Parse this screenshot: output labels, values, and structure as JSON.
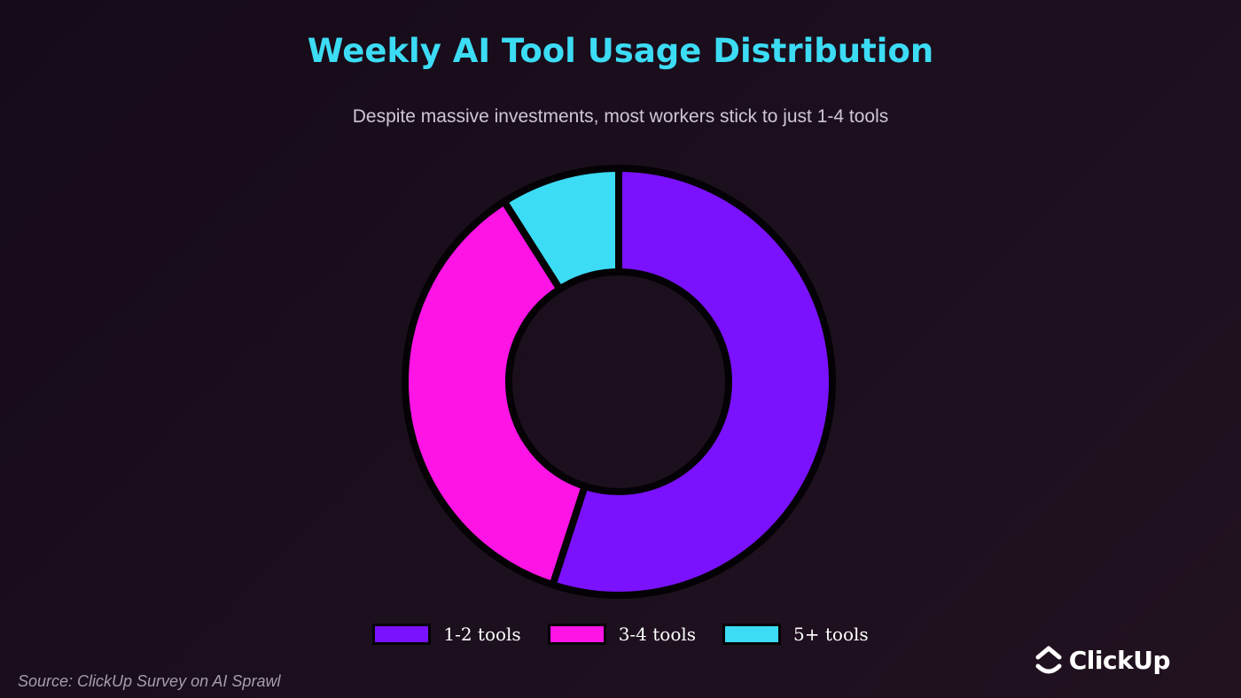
{
  "header": {
    "title": "Weekly AI Tool Usage Distribution",
    "subtitle": "Despite massive investments, most workers stick to just 1-4 tools"
  },
  "chart_data": {
    "type": "pie",
    "title": "Weekly AI Tool Usage Distribution",
    "subtitle": "Despite massive investments, most workers stick to just 1-4 tools",
    "categories": [
      "1-2 tools",
      "3-4 tools",
      "5+ tools"
    ],
    "values": [
      55,
      36,
      9
    ],
    "unit": "%",
    "colors": [
      "#7a12ff",
      "#ff14e6",
      "#3ddcf5"
    ],
    "donut": true,
    "legend": "bottom-center"
  },
  "footer": {
    "source": "Source: ClickUp Survey on AI Sprawl",
    "brand": "ClickUp"
  }
}
